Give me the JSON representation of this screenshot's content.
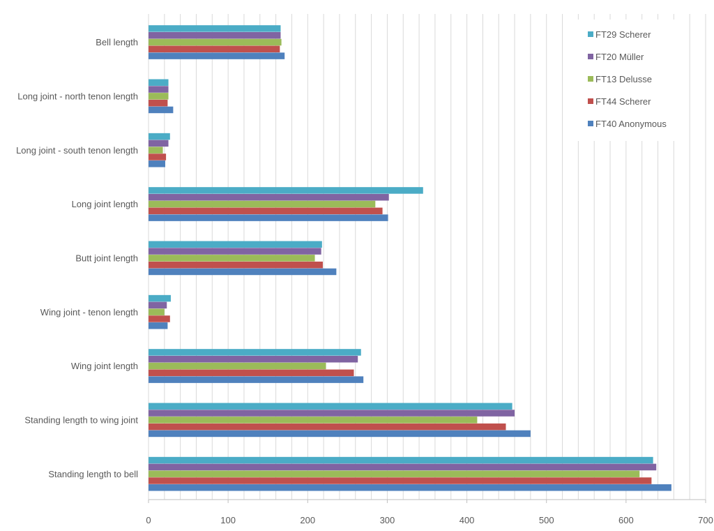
{
  "chart_data": {
    "type": "bar",
    "orientation": "horizontal",
    "title": "",
    "xlabel": "",
    "ylabel": "",
    "xlim": [
      0,
      700
    ],
    "x_ticks": [
      "0",
      "100",
      "200",
      "300",
      "400",
      "500",
      "600",
      "700"
    ],
    "x_tick_values": [
      0,
      100,
      200,
      300,
      400,
      500,
      600,
      700
    ],
    "minor_grid_step": 20,
    "grid": true,
    "legend_position": "top-right",
    "categories": [
      "Bell length",
      "Long joint - north tenon length",
      "Long joint - south tenon length",
      "Long joint length",
      "Butt joint length",
      "Wing joint - tenon length",
      "Wing joint length",
      "Standing length to wing joint",
      "Standing length to bell"
    ],
    "series": [
      {
        "name": "FT29 Scherer",
        "color": "#4BACC6",
        "values": [
          166,
          25,
          27,
          345,
          218,
          28,
          267,
          457,
          634
        ]
      },
      {
        "name": "FT20 Müller",
        "color": "#8064A2",
        "values": [
          166,
          25,
          25,
          302,
          217,
          23,
          263,
          460,
          638
        ]
      },
      {
        "name": "FT13 Delusse",
        "color": "#9BBB59",
        "values": [
          167,
          25,
          18,
          285,
          209,
          20,
          223,
          413,
          617
        ]
      },
      {
        "name": "FT44 Scherer",
        "color": "#C0504D",
        "values": [
          165,
          24,
          22,
          294,
          219,
          27,
          258,
          449,
          632
        ]
      },
      {
        "name": "FT40 Anonymous",
        "color": "#4F81BD",
        "values": [
          171,
          31,
          21,
          301,
          236,
          24,
          270,
          480,
          657
        ]
      }
    ]
  }
}
